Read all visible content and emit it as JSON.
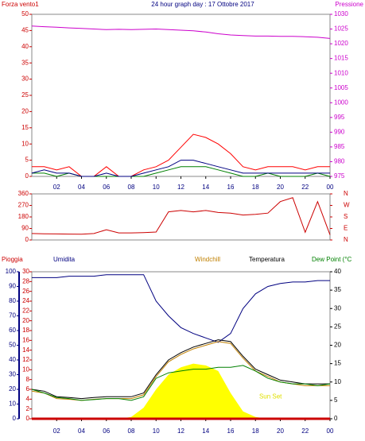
{
  "chart_data": [
    {
      "type": "line",
      "title": "24 hour graph day : 17 Ottobre 2017",
      "y_label": "Forza vento1",
      "y2_label": "Pressione",
      "x": [
        0,
        1,
        2,
        3,
        4,
        5,
        6,
        7,
        8,
        9,
        10,
        11,
        12,
        13,
        14,
        15,
        16,
        17,
        18,
        19,
        20,
        21,
        22,
        23,
        24
      ],
      "xlim": [
        0,
        24
      ],
      "xticks": [
        {
          "value": 2,
          "label": "02"
        },
        {
          "value": 4,
          "label": "04"
        },
        {
          "value": 6,
          "label": "06"
        },
        {
          "value": 8,
          "label": "08"
        },
        10,
        12,
        14,
        16,
        18,
        20,
        22,
        {
          "value": 24,
          "label": "00"
        }
      ],
      "ylim": [
        0,
        50
      ],
      "yticks": [
        0,
        5,
        10,
        15,
        20,
        25,
        30,
        35,
        40,
        45,
        50
      ],
      "y_color": "#cc0000",
      "y2lim": [
        975,
        1030
      ],
      "y2ticks": [
        975,
        980,
        985,
        990,
        995,
        1000,
        1005,
        1010,
        1015,
        1020,
        1025,
        1030
      ],
      "y2_color": "#cc00cc",
      "series": [
        {
          "color": "#ff0000",
          "values": [
            3,
            3,
            2,
            3,
            0,
            0,
            3,
            0,
            0,
            2,
            3,
            5,
            9,
            13,
            12,
            10,
            7,
            3,
            2,
            3,
            3,
            3,
            2,
            3,
            3
          ]
        },
        {
          "color": "#008000",
          "values": [
            1,
            1,
            0,
            1,
            0,
            0,
            0,
            0,
            0,
            0,
            1,
            2,
            3,
            3,
            3,
            2,
            1,
            0,
            0,
            1,
            0,
            0,
            0,
            1,
            0
          ]
        },
        {
          "color": "#000080",
          "values": [
            1,
            2,
            1,
            1,
            0,
            0,
            1,
            0,
            0,
            1,
            2,
            3,
            5,
            5,
            4,
            3,
            2,
            1,
            1,
            1,
            1,
            1,
            1,
            1,
            1
          ]
        },
        {
          "color": "#cc00cc",
          "axis": "y2",
          "values": [
            1026,
            1025.8,
            1025.6,
            1025.4,
            1025.2,
            1025,
            1024.8,
            1024.9,
            1024.8,
            1024.9,
            1025,
            1024.8,
            1024.6,
            1024.4,
            1024,
            1023.4,
            1023,
            1022.8,
            1022.6,
            1022.6,
            1022.5,
            1022.5,
            1022.4,
            1022.2,
            1021.8
          ]
        }
      ]
    },
    {
      "type": "line",
      "x": [
        0,
        1,
        2,
        3,
        4,
        5,
        6,
        7,
        8,
        9,
        10,
        11,
        12,
        13,
        14,
        15,
        16,
        17,
        18,
        19,
        20,
        21,
        22,
        23,
        24
      ],
      "xlim": [
        0,
        24
      ],
      "ylim": [
        0,
        360
      ],
      "yticks": [
        0,
        90,
        180,
        270,
        360
      ],
      "y_color": "#cc0000",
      "y2lim": [
        0,
        360
      ],
      "y2ticks": [
        {
          "value": 0,
          "label": "N"
        },
        {
          "value": 90,
          "label": "E"
        },
        {
          "value": 180,
          "label": "S"
        },
        {
          "value": 270,
          "label": "W"
        },
        {
          "value": 360,
          "label": "N"
        }
      ],
      "y2_color": "#cc0000",
      "series": [
        {
          "color": "#cc0000",
          "values": [
            50,
            48,
            47,
            46,
            45,
            50,
            80,
            55,
            55,
            58,
            62,
            220,
            230,
            220,
            230,
            215,
            210,
            195,
            200,
            210,
            300,
            330,
            60,
            300,
            40
          ]
        }
      ]
    },
    {
      "type": "line",
      "x": [
        0,
        1,
        2,
        3,
        4,
        5,
        6,
        7,
        8,
        9,
        10,
        11,
        12,
        13,
        14,
        15,
        16,
        17,
        18,
        19,
        20,
        21,
        22,
        23,
        24
      ],
      "xlim": [
        0,
        24
      ],
      "xticks": [
        {
          "value": 2,
          "label": "02"
        },
        {
          "value": 4,
          "label": "04"
        },
        {
          "value": 6,
          "label": "06"
        },
        {
          "value": 8,
          "label": "08"
        },
        10,
        12,
        14,
        16,
        18,
        20,
        22,
        {
          "value": 24,
          "label": "00"
        }
      ],
      "ylim": [
        0,
        100
      ],
      "yticks": [
        0,
        10,
        20,
        30,
        40,
        50,
        60,
        70,
        80,
        90,
        100
      ],
      "y_color": "#000080",
      "y3lim": [
        0,
        30
      ],
      "y3ticks": [
        0,
        2,
        4,
        6,
        8,
        10,
        12,
        14,
        16,
        18,
        20,
        22,
        24,
        26,
        28,
        30
      ],
      "y3_color": "#cc0000",
      "y2lim": [
        0,
        40
      ],
      "y2ticks": [
        0,
        5,
        10,
        15,
        20,
        25,
        30,
        35,
        40
      ],
      "y2_color": "#000000",
      "annotation": {
        "text": "Sun Set",
        "x": 18.3,
        "y": 6
      },
      "series": [
        {
          "color": "#ffff00",
          "axis": "y2",
          "area": true,
          "values": [
            0,
            0,
            0,
            0,
            0,
            0,
            0,
            0,
            0.5,
            3,
            8,
            12,
            14,
            15,
            14.5,
            13,
            7,
            2,
            0.5,
            0,
            0,
            0,
            0,
            0,
            0
          ]
        },
        {
          "name": "Pioggia",
          "color": "#cc0000",
          "axis": "y3",
          "values": [
            0,
            0,
            0,
            0,
            0,
            0,
            0,
            0,
            0,
            0,
            0,
            0,
            0,
            0,
            0,
            0,
            0,
            0,
            0,
            0,
            0,
            0,
            0,
            0,
            0
          ]
        },
        {
          "name": "Umidita",
          "color": "#000080",
          "values": [
            96,
            96,
            96,
            97,
            97,
            97,
            98,
            98,
            98,
            98,
            80,
            70,
            62,
            58,
            55,
            52,
            58,
            75,
            85,
            90,
            92,
            93,
            93,
            94,
            94
          ]
        },
        {
          "name": "Windchill",
          "color": "#c08000",
          "axis": "y2",
          "values": [
            7.5,
            7,
            5.5,
            5.3,
            5,
            5.3,
            5.5,
            5.5,
            5.5,
            6.5,
            11.5,
            15.5,
            17.5,
            19,
            20,
            21,
            20.5,
            16.5,
            13,
            11.5,
            10,
            9.5,
            9,
            9,
            9
          ]
        },
        {
          "name": "Temperatura",
          "color": "#000000",
          "axis": "y2",
          "values": [
            8,
            7.5,
            6,
            5.8,
            5.5,
            5.8,
            6,
            6,
            6,
            7,
            12,
            16,
            18,
            19.5,
            20.5,
            21.5,
            21,
            17,
            13.5,
            12,
            10.5,
            10,
            9.5,
            9.5,
            9.5
          ]
        },
        {
          "name": "Dew Point (°C",
          "color": "#008000",
          "axis": "y2",
          "values": [
            8,
            7,
            5.8,
            5.5,
            5,
            5.2,
            5.5,
            5.5,
            5,
            6,
            11,
            12.5,
            13,
            13.5,
            13.5,
            14,
            14,
            14.5,
            13,
            11,
            10,
            9.5,
            9.5,
            9,
            9.5
          ]
        }
      ]
    }
  ]
}
